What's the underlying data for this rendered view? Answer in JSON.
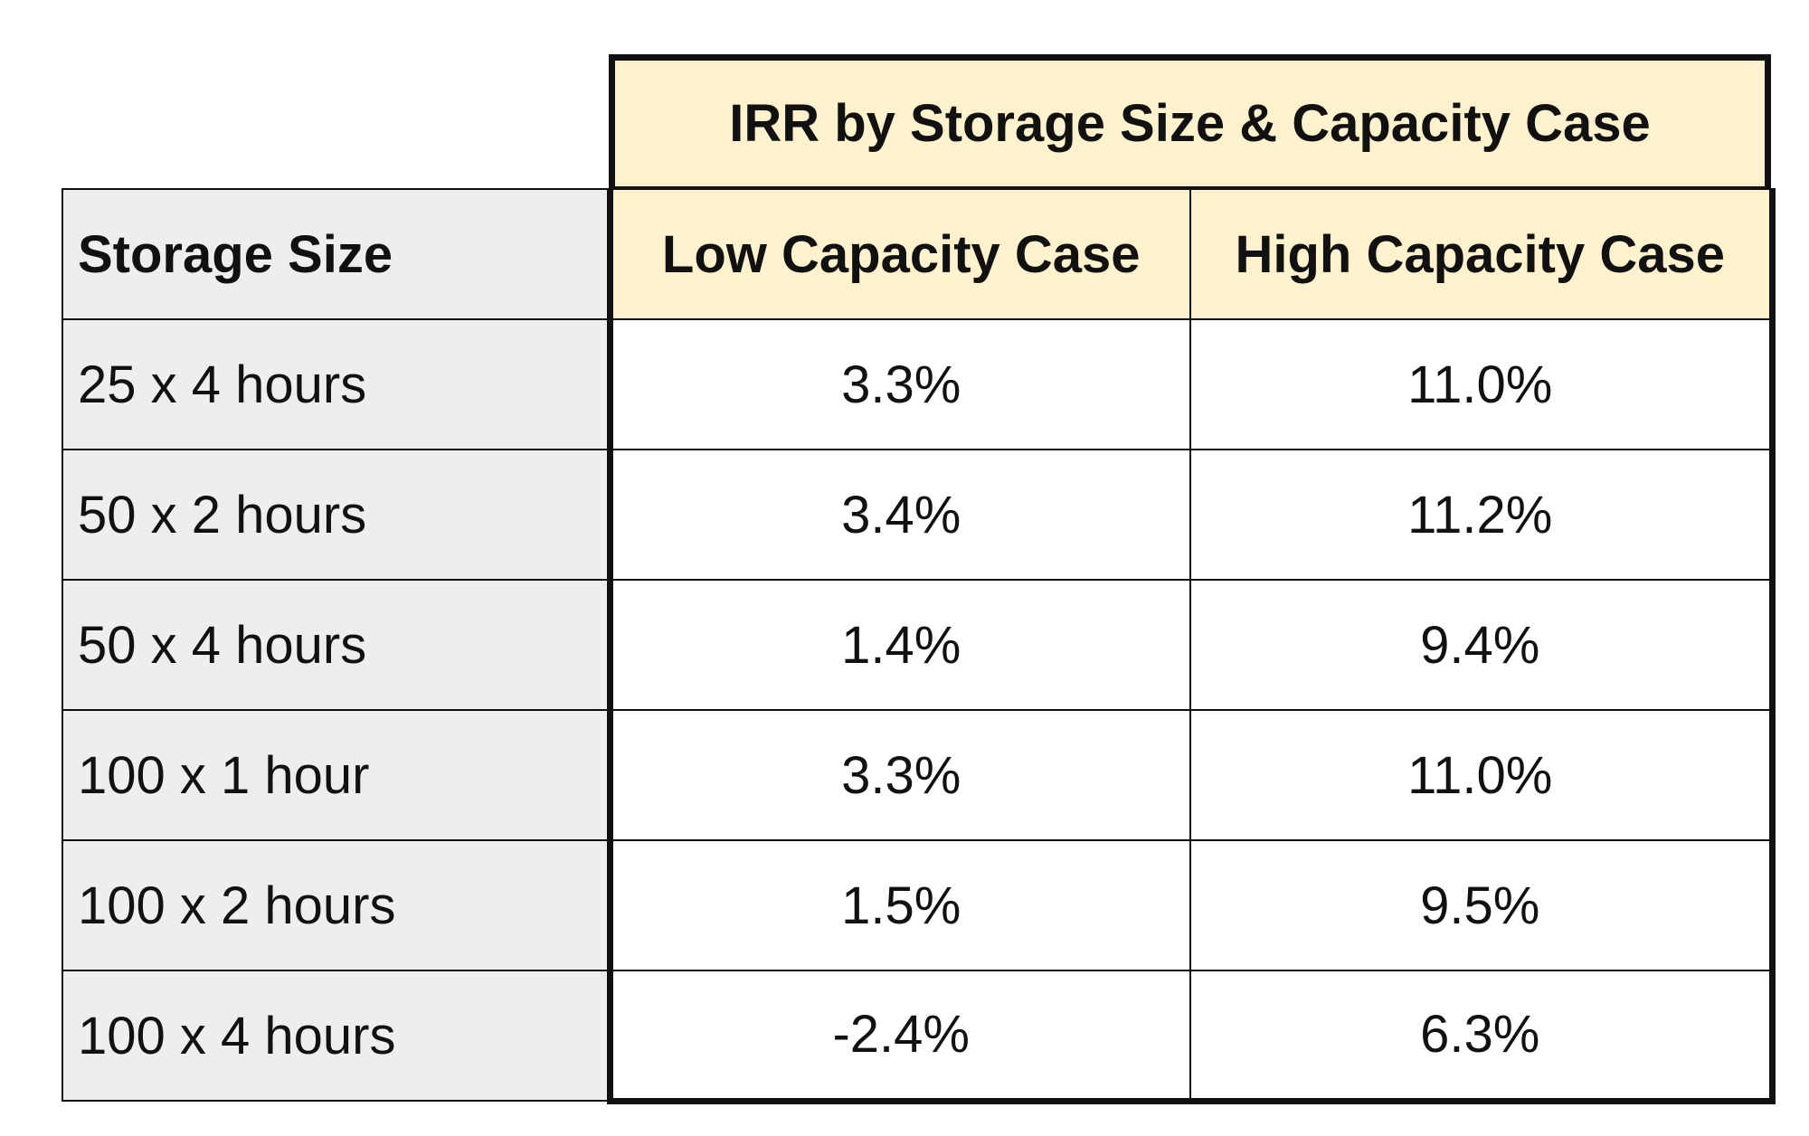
{
  "table": {
    "title": "IRR by Storage Size & Capacity Case",
    "columns": {
      "label": "Storage Size",
      "low": "Low Capacity Case",
      "high": "High Capacity Case"
    },
    "rows": [
      {
        "size": "25 x 4 hours",
        "low": "3.3%",
        "high": "11.0%"
      },
      {
        "size": "50 x 2 hours",
        "low": "3.4%",
        "high": "11.2%"
      },
      {
        "size": "50 x 4 hours",
        "low": "1.4%",
        "high": "9.4%"
      },
      {
        "size": "100 x 1 hour",
        "low": "3.3%",
        "high": "11.0%"
      },
      {
        "size": "100 x 2 hours",
        "low": "1.5%",
        "high": "9.5%"
      },
      {
        "size": "100 x 4 hours",
        "low": "-2.4%",
        "high": "6.3%"
      }
    ]
  }
}
